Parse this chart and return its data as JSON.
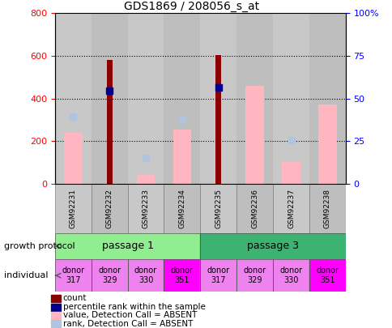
{
  "title": "GDS1869 / 208056_s_at",
  "samples": [
    "GSM92231",
    "GSM92232",
    "GSM92233",
    "GSM92234",
    "GSM92235",
    "GSM92236",
    "GSM92237",
    "GSM92238"
  ],
  "count": [
    null,
    580,
    null,
    null,
    605,
    null,
    null,
    null
  ],
  "value_absent": [
    240,
    null,
    40,
    255,
    null,
    460,
    100,
    370
  ],
  "rank_absent": [
    315,
    null,
    120,
    300,
    null,
    null,
    205,
    null
  ],
  "percentile_rank": [
    null,
    435,
    null,
    null,
    450,
    null,
    null,
    null
  ],
  "ylim_left": [
    0,
    800
  ],
  "ylim_right": [
    0,
    100
  ],
  "yticks_left": [
    0,
    200,
    400,
    600,
    800
  ],
  "yticks_right": [
    0,
    25,
    50,
    75,
    100
  ],
  "count_color": "#8B0000",
  "value_absent_color": "#FFB6C1",
  "rank_absent_color": "#B0C4DE",
  "percentile_rank_color": "#00008B",
  "col_bg_even": "#C8C8C8",
  "col_bg_odd": "#BEBEBE",
  "passage1_color": "#90EE90",
  "passage3_color": "#3CB371",
  "donor_colors": [
    "#EE82EE",
    "#EE82EE",
    "#EE82EE",
    "#FF00FF",
    "#EE82EE",
    "#EE82EE",
    "#EE82EE",
    "#FF00FF"
  ],
  "donor_labels": [
    "donor\n317",
    "donor\n329",
    "donor\n330",
    "donor\n351",
    "donor\n317",
    "donor\n329",
    "donor\n330",
    "donor\n351"
  ],
  "legend_items": [
    {
      "label": "count",
      "color": "#8B0000",
      "marker": "square"
    },
    {
      "label": "percentile rank within the sample",
      "color": "#00008B",
      "marker": "square"
    },
    {
      "label": "value, Detection Call = ABSENT",
      "color": "#FFB6C1",
      "marker": "square"
    },
    {
      "label": "rank, Detection Call = ABSENT",
      "color": "#B0C4DE",
      "marker": "square"
    }
  ]
}
